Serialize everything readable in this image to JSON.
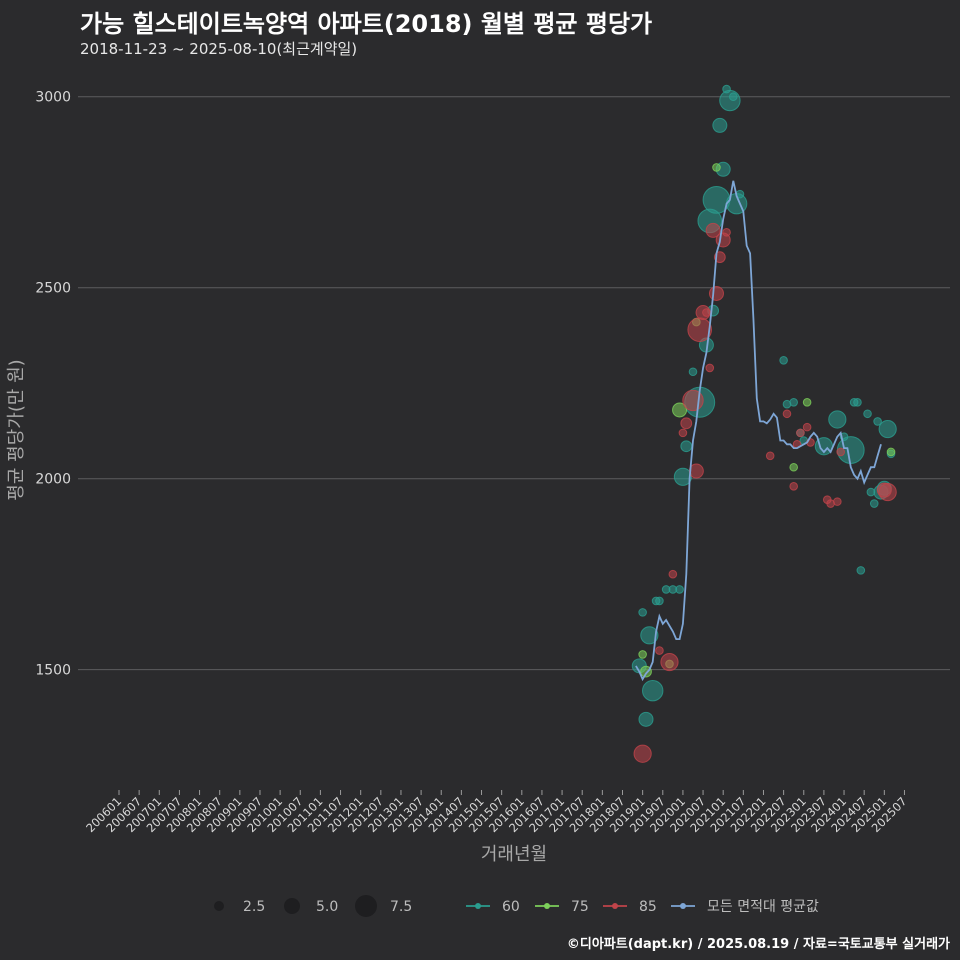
{
  "title": "가능 힐스테이트녹양역 아파트(2018) 월별 평균 평당가",
  "subtitle": "2018-11-23 ~ 2025-08-10(최근계약일)",
  "caption": "©디아파트(dapt.kr) / 2025.08.19 / 자료=국토교통부 실거래가",
  "chart_data": {
    "type": "scatter",
    "xlabel": "거래년월",
    "ylabel": "평균 평당가(만 원)",
    "ylim": [
      1185,
      3070
    ],
    "yticks": [
      1500,
      2000,
      2500,
      3000
    ],
    "xtick_labels": [
      "200601",
      "200607",
      "200701",
      "200707",
      "200801",
      "200807",
      "200901",
      "200907",
      "201001",
      "201007",
      "201101",
      "201107",
      "201201",
      "201207",
      "201301",
      "201307",
      "201401",
      "201407",
      "201501",
      "201507",
      "201601",
      "201607",
      "201701",
      "201707",
      "201801",
      "201807",
      "201901",
      "201907",
      "202001",
      "202007",
      "202101",
      "202107",
      "202201",
      "202207",
      "202301",
      "202307",
      "202401",
      "202407",
      "202501",
      "202507"
    ],
    "legend": {
      "size_labels": [
        "2.5",
        "5.0",
        "7.5"
      ],
      "series_labels": [
        "60",
        "75",
        "85",
        "모든 면적대 평균값"
      ]
    },
    "colors": {
      "s60": "#2a9d8f",
      "s75": "#7ccf5a",
      "s85": "#c0444a",
      "avg": "#7ea6d6"
    },
    "series": [
      {
        "name": "60",
        "points": [
          [
            "201812",
            1510,
            3
          ],
          [
            "201901",
            1650,
            1
          ],
          [
            "201902",
            1370,
            3
          ],
          [
            "201903",
            1590,
            4
          ],
          [
            "201904",
            1445,
            5
          ],
          [
            "201905",
            1680,
            1
          ],
          [
            "201906",
            1680,
            1
          ],
          [
            "201908",
            1710,
            1
          ],
          [
            "201910",
            1710,
            1
          ],
          [
            "201912",
            1710,
            1
          ],
          [
            "202001",
            2005,
            4
          ],
          [
            "202002",
            2085,
            2
          ],
          [
            "202004",
            2280,
            1
          ],
          [
            "202006",
            2200,
            8
          ],
          [
            "202008",
            2350,
            3
          ],
          [
            "202009",
            2675,
            6
          ],
          [
            "202010",
            2440,
            2
          ],
          [
            "202011",
            2730,
            7
          ],
          [
            "202012",
            2925,
            3
          ],
          [
            "202101",
            2810,
            3
          ],
          [
            "202102",
            3020,
            1
          ],
          [
            "202103",
            2990,
            5
          ],
          [
            "202104",
            3000,
            1
          ],
          [
            "202105",
            2720,
            5
          ],
          [
            "202106",
            2745,
            1
          ],
          [
            "202207",
            2310,
            1
          ],
          [
            "202208",
            2195,
            1
          ],
          [
            "202210",
            2200,
            1
          ],
          [
            "202212",
            2120,
            1
          ],
          [
            "202301",
            2100,
            1
          ],
          [
            "202307",
            2085,
            4
          ],
          [
            "202311",
            2155,
            4
          ],
          [
            "202401",
            2110,
            1
          ],
          [
            "202403",
            2075,
            7
          ],
          [
            "202404",
            2200,
            1
          ],
          [
            "202405",
            2200,
            1
          ],
          [
            "202406",
            1760,
            1
          ],
          [
            "202408",
            2170,
            1
          ],
          [
            "202409",
            1965,
            1
          ],
          [
            "202410",
            1935,
            1
          ],
          [
            "202411",
            2150,
            1
          ],
          [
            "202412",
            1965,
            3
          ],
          [
            "202501",
            1975,
            3
          ],
          [
            "202502",
            2130,
            4
          ],
          [
            "202503",
            2065,
            1
          ]
        ]
      },
      {
        "name": "75",
        "points": [
          [
            "201901",
            1540,
            1
          ],
          [
            "201902",
            1495,
            2
          ],
          [
            "201909",
            1515,
            1
          ],
          [
            "201912",
            2180,
            3
          ],
          [
            "202005",
            2410,
            1
          ],
          [
            "202011",
            2815,
            1
          ],
          [
            "202210",
            2030,
            1
          ],
          [
            "202302",
            2200,
            1
          ],
          [
            "202503",
            2070,
            1
          ]
        ]
      },
      {
        "name": "85",
        "points": [
          [
            "201901",
            1280,
            4
          ],
          [
            "201906",
            1550,
            1
          ],
          [
            "201909",
            1520,
            4
          ],
          [
            "201910",
            1750,
            1
          ],
          [
            "202001",
            2120,
            1
          ],
          [
            "202002",
            2145,
            2
          ],
          [
            "202004",
            2205,
            5
          ],
          [
            "202005",
            2020,
            3
          ],
          [
            "202006",
            2390,
            6
          ],
          [
            "202007",
            2435,
            3
          ],
          [
            "202008",
            2435,
            1
          ],
          [
            "202009",
            2290,
            1
          ],
          [
            "202010",
            2650,
            3
          ],
          [
            "202011",
            2485,
            3
          ],
          [
            "202012",
            2580,
            2
          ],
          [
            "202101",
            2625,
            3
          ],
          [
            "202102",
            2645,
            1
          ],
          [
            "202203",
            2060,
            1
          ],
          [
            "202208",
            2170,
            1
          ],
          [
            "202210",
            1980,
            1
          ],
          [
            "202211",
            2090,
            1
          ],
          [
            "202212",
            2120,
            1
          ],
          [
            "202302",
            2135,
            1
          ],
          [
            "202303",
            2095,
            1
          ],
          [
            "202308",
            1945,
            1
          ],
          [
            "202309",
            1935,
            1
          ],
          [
            "202311",
            1940,
            1
          ],
          [
            "202312",
            2070,
            1
          ],
          [
            "202501",
            1970,
            3
          ],
          [
            "202502",
            1965,
            4
          ]
        ]
      },
      {
        "name": "모든 면적대 평균값",
        "points": [
          [
            "201811",
            1510
          ],
          [
            "201812",
            1495
          ],
          [
            "201901",
            1475
          ],
          [
            "201902",
            1490
          ],
          [
            "201903",
            1500
          ],
          [
            "201904",
            1520
          ],
          [
            "201905",
            1600
          ],
          [
            "201906",
            1640
          ],
          [
            "201907",
            1620
          ],
          [
            "201908",
            1630
          ],
          [
            "201909",
            1615
          ],
          [
            "201910",
            1600
          ],
          [
            "201911",
            1580
          ],
          [
            "201912",
            1580
          ],
          [
            "202001",
            1620
          ],
          [
            "202002",
            1750
          ],
          [
            "202003",
            2000
          ],
          [
            "202004",
            2100
          ],
          [
            "202005",
            2150
          ],
          [
            "202006",
            2230
          ],
          [
            "202007",
            2290
          ],
          [
            "202008",
            2330
          ],
          [
            "202009",
            2400
          ],
          [
            "202010",
            2480
          ],
          [
            "202011",
            2590
          ],
          [
            "202012",
            2620
          ],
          [
            "202101",
            2680
          ],
          [
            "202102",
            2720
          ],
          [
            "202103",
            2730
          ],
          [
            "202104",
            2780
          ],
          [
            "202105",
            2740
          ],
          [
            "202106",
            2720
          ],
          [
            "202107",
            2700
          ],
          [
            "202108",
            2610
          ],
          [
            "202109",
            2590
          ],
          [
            "202110",
            2420
          ],
          [
            "202111",
            2210
          ],
          [
            "202112",
            2150
          ],
          [
            "202201",
            2150
          ],
          [
            "202202",
            2145
          ],
          [
            "202203",
            2155
          ],
          [
            "202204",
            2170
          ],
          [
            "202205",
            2160
          ],
          [
            "202206",
            2100
          ],
          [
            "202207",
            2100
          ],
          [
            "202208",
            2090
          ],
          [
            "202209",
            2090
          ],
          [
            "202210",
            2080
          ],
          [
            "202211",
            2080
          ],
          [
            "202212",
            2085
          ],
          [
            "202301",
            2090
          ],
          [
            "202302",
            2095
          ],
          [
            "202303",
            2110
          ],
          [
            "202304",
            2120
          ],
          [
            "202305",
            2110
          ],
          [
            "202306",
            2080
          ],
          [
            "202307",
            2070
          ],
          [
            "202308",
            2080
          ],
          [
            "202309",
            2070
          ],
          [
            "202310",
            2090
          ],
          [
            "202311",
            2110
          ],
          [
            "202312",
            2120
          ],
          [
            "202401",
            2080
          ],
          [
            "202402",
            2080
          ],
          [
            "202403",
            2030
          ],
          [
            "202404",
            2010
          ],
          [
            "202405",
            2000
          ],
          [
            "202406",
            2020
          ],
          [
            "202407",
            1990
          ],
          [
            "202408",
            2010
          ],
          [
            "202409",
            2030
          ],
          [
            "202410",
            2030
          ],
          [
            "202411",
            2060
          ],
          [
            "202412",
            2090
          ]
        ]
      }
    ]
  }
}
